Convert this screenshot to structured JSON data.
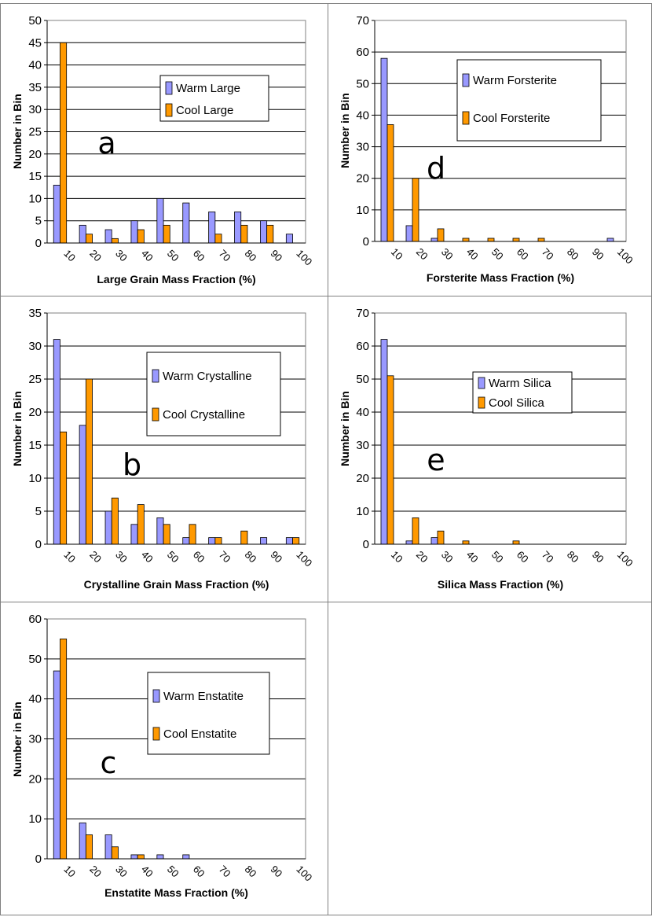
{
  "colors": {
    "warm": "#9999ff",
    "cool": "#ff9900",
    "grid": "#000000"
  },
  "chart_data": [
    {
      "id": "a",
      "type": "bar",
      "panel_label": "a",
      "title": "",
      "xlabel": "Large Grain Mass Fraction (%)",
      "ylabel": "Number in Bin",
      "ylim": [
        0,
        50
      ],
      "yticks": [
        "0",
        "5",
        "10",
        "15",
        "20",
        "25",
        "30",
        "35",
        "40",
        "45",
        "50"
      ],
      "categories": [
        "10",
        "20",
        "30",
        "40",
        "50",
        "60",
        "70",
        "80",
        "90",
        "100"
      ],
      "legend_position": "center-right",
      "series": [
        {
          "name": "Warm Large",
          "values": [
            13,
            4,
            3,
            5,
            10,
            9,
            7,
            7,
            5,
            2
          ]
        },
        {
          "name": "Cool Large",
          "values": [
            45,
            2,
            1,
            3,
            4,
            0,
            2,
            4,
            4,
            0
          ]
        }
      ]
    },
    {
      "id": "d",
      "type": "bar",
      "panel_label": "d",
      "title": "",
      "xlabel": "Forsterite Mass Fraction (%)",
      "ylabel": "Number in Bin",
      "ylim": [
        0,
        70
      ],
      "yticks": [
        "0",
        "10",
        "20",
        "30",
        "40",
        "50",
        "60",
        "70"
      ],
      "categories": [
        "10",
        "20",
        "30",
        "40",
        "50",
        "60",
        "70",
        "80",
        "90",
        "100"
      ],
      "legend_position": "top-right",
      "series": [
        {
          "name": "Warm Forsterite",
          "values": [
            58,
            5,
            1,
            0,
            0,
            0,
            0,
            0,
            0,
            1
          ]
        },
        {
          "name": "Cool Forsterite",
          "values": [
            37,
            20,
            4,
            1,
            1,
            1,
            1,
            0,
            0,
            0
          ]
        }
      ]
    },
    {
      "id": "b",
      "type": "bar",
      "panel_label": "b",
      "title": "",
      "xlabel": "Crystalline Grain Mass Fraction (%)",
      "ylabel": "Number in Bin",
      "ylim": [
        0,
        35
      ],
      "yticks": [
        "0",
        "5",
        "10",
        "15",
        "20",
        "25",
        "30",
        "35"
      ],
      "categories": [
        "10",
        "20",
        "30",
        "40",
        "50",
        "60",
        "70",
        "80",
        "90",
        "100"
      ],
      "legend_position": "top-right",
      "series": [
        {
          "name": "Warm Crystalline",
          "values": [
            31,
            18,
            5,
            3,
            4,
            1,
            1,
            0,
            1,
            1
          ]
        },
        {
          "name": "Cool Crystalline",
          "values": [
            17,
            25,
            7,
            6,
            3,
            3,
            1,
            2,
            0,
            1
          ]
        }
      ]
    },
    {
      "id": "e",
      "type": "bar",
      "panel_label": "e",
      "title": "",
      "xlabel": "Silica Mass Fraction (%)",
      "ylabel": "Number in Bin",
      "ylim": [
        0,
        70
      ],
      "yticks": [
        "0",
        "10",
        "20",
        "30",
        "40",
        "50",
        "60",
        "70"
      ],
      "categories": [
        "10",
        "20",
        "30",
        "40",
        "50",
        "60",
        "70",
        "80",
        "90",
        "100"
      ],
      "legend_position": "top-right",
      "series": [
        {
          "name": "Warm Silica",
          "values": [
            62,
            1,
            2,
            0,
            0,
            0,
            0,
            0,
            0,
            0
          ]
        },
        {
          "name": "Cool Silica",
          "values": [
            51,
            8,
            4,
            1,
            0,
            1,
            0,
            0,
            0,
            0
          ]
        }
      ]
    },
    {
      "id": "c",
      "type": "bar",
      "panel_label": "c",
      "title": "",
      "xlabel": "Enstatite Mass Fraction (%)",
      "ylabel": "Number in Bin",
      "ylim": [
        0,
        60
      ],
      "yticks": [
        "0",
        "10",
        "20",
        "30",
        "40",
        "50",
        "60"
      ],
      "categories": [
        "10",
        "20",
        "30",
        "40",
        "50",
        "60",
        "70",
        "80",
        "90",
        "100"
      ],
      "legend_position": "center-right",
      "series": [
        {
          "name": "Warm Enstatite",
          "values": [
            47,
            9,
            6,
            1,
            1,
            1,
            0,
            0,
            0,
            0
          ]
        },
        {
          "name": "Cool Enstatite",
          "values": [
            55,
            6,
            3,
            1,
            0,
            0,
            0,
            0,
            0,
            0
          ]
        }
      ]
    }
  ]
}
